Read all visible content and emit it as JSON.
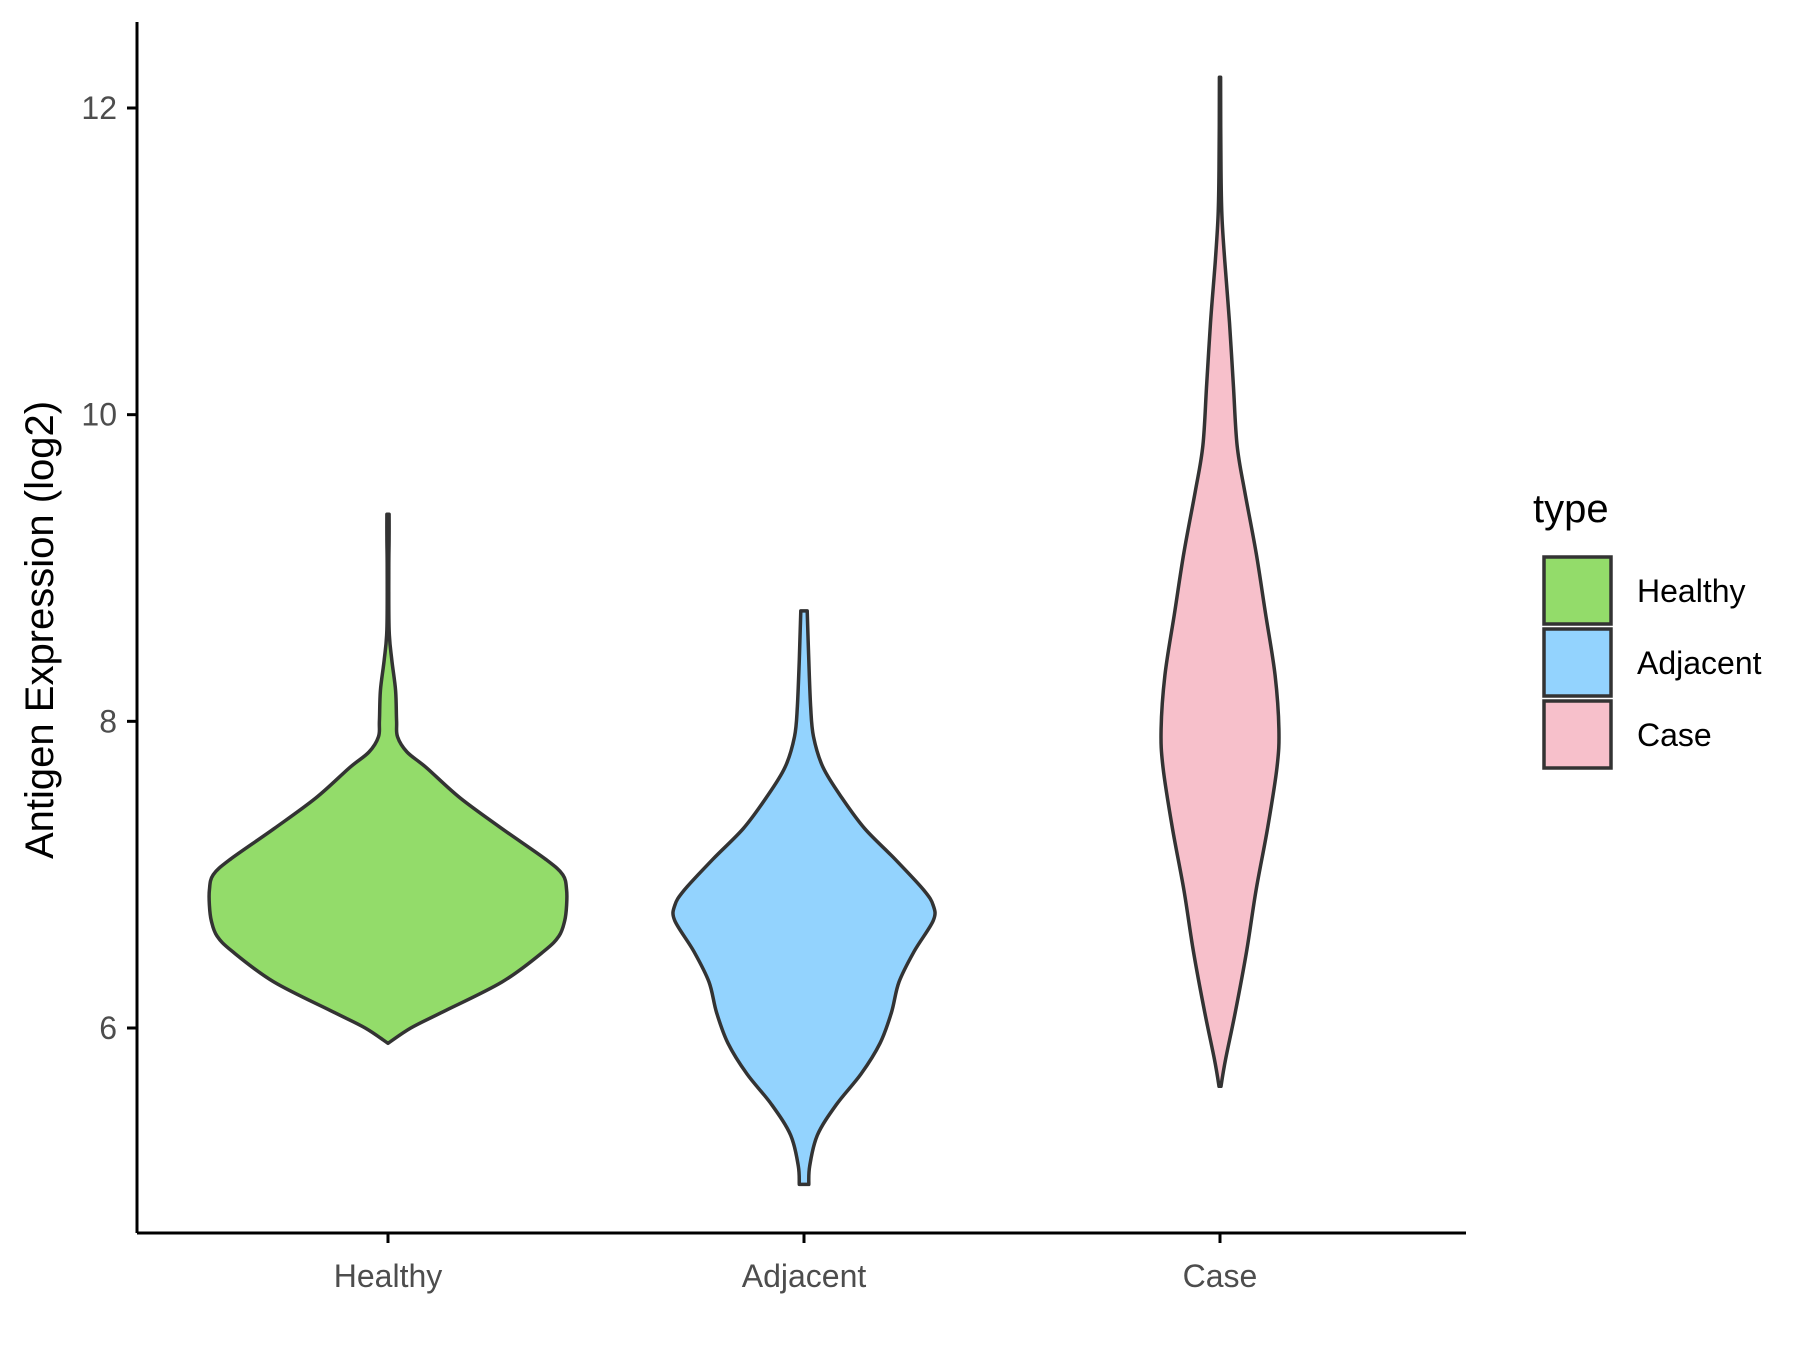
{
  "chart_data": {
    "type": "violin",
    "ylabel": "Antigen Expression (log2)",
    "xlabel": "",
    "ylim": [
      4.6,
      12.6
    ],
    "yticks": [
      6,
      8,
      10,
      12
    ],
    "categories": [
      "Healthy",
      "Adjacent",
      "Case"
    ],
    "legend": {
      "title": "type",
      "position": "right",
      "entries": [
        {
          "label": "Healthy",
          "color": "#93dc6a"
        },
        {
          "label": "Adjacent",
          "color": "#93d3fe"
        },
        {
          "label": "Case",
          "color": "#f7c0cb"
        }
      ]
    },
    "grid": false,
    "outline_color": "#333333",
    "series": [
      {
        "category": "Healthy",
        "color": "#93dc6a",
        "min": 5.9,
        "max": 9.35,
        "density": [
          [
            5.9,
            0.0
          ],
          [
            6.0,
            0.12
          ],
          [
            6.1,
            0.28
          ],
          [
            6.3,
            0.6
          ],
          [
            6.5,
            0.82
          ],
          [
            6.6,
            0.9
          ],
          [
            6.7,
            0.93
          ],
          [
            6.8,
            0.94
          ],
          [
            6.9,
            0.94
          ],
          [
            7.0,
            0.92
          ],
          [
            7.1,
            0.83
          ],
          [
            7.3,
            0.6
          ],
          [
            7.5,
            0.38
          ],
          [
            7.7,
            0.2
          ],
          [
            7.8,
            0.1
          ],
          [
            7.9,
            0.05
          ],
          [
            8.0,
            0.045
          ],
          [
            8.2,
            0.04
          ],
          [
            8.4,
            0.02
          ],
          [
            8.6,
            0.006
          ],
          [
            9.0,
            0.004
          ],
          [
            9.2,
            0.006
          ],
          [
            9.35,
            0.006
          ]
        ]
      },
      {
        "category": "Adjacent",
        "color": "#93d3fe",
        "min": 4.98,
        "max": 8.72,
        "density": [
          [
            4.98,
            0.025
          ],
          [
            5.1,
            0.03
          ],
          [
            5.3,
            0.07
          ],
          [
            5.5,
            0.17
          ],
          [
            5.7,
            0.3
          ],
          [
            5.9,
            0.4
          ],
          [
            6.1,
            0.46
          ],
          [
            6.3,
            0.5
          ],
          [
            6.5,
            0.58
          ],
          [
            6.7,
            0.68
          ],
          [
            6.8,
            0.68
          ],
          [
            6.9,
            0.63
          ],
          [
            7.1,
            0.48
          ],
          [
            7.3,
            0.32
          ],
          [
            7.5,
            0.2
          ],
          [
            7.7,
            0.1
          ],
          [
            7.9,
            0.05
          ],
          [
            8.1,
            0.035
          ],
          [
            8.4,
            0.025
          ],
          [
            8.72,
            0.017
          ]
        ]
      },
      {
        "category": "Case",
        "color": "#f7c0cb",
        "min": 5.62,
        "max": 12.2,
        "density": [
          [
            5.62,
            0.005
          ],
          [
            5.8,
            0.03
          ],
          [
            6.1,
            0.08
          ],
          [
            6.5,
            0.14
          ],
          [
            6.9,
            0.19
          ],
          [
            7.3,
            0.25
          ],
          [
            7.7,
            0.3
          ],
          [
            7.95,
            0.31
          ],
          [
            8.3,
            0.29
          ],
          [
            8.7,
            0.24
          ],
          [
            9.1,
            0.19
          ],
          [
            9.5,
            0.13
          ],
          [
            9.8,
            0.09
          ],
          [
            10.2,
            0.07
          ],
          [
            10.6,
            0.05
          ],
          [
            11.0,
            0.025
          ],
          [
            11.3,
            0.01
          ],
          [
            11.6,
            0.005
          ],
          [
            12.2,
            0.003
          ]
        ]
      }
    ]
  }
}
